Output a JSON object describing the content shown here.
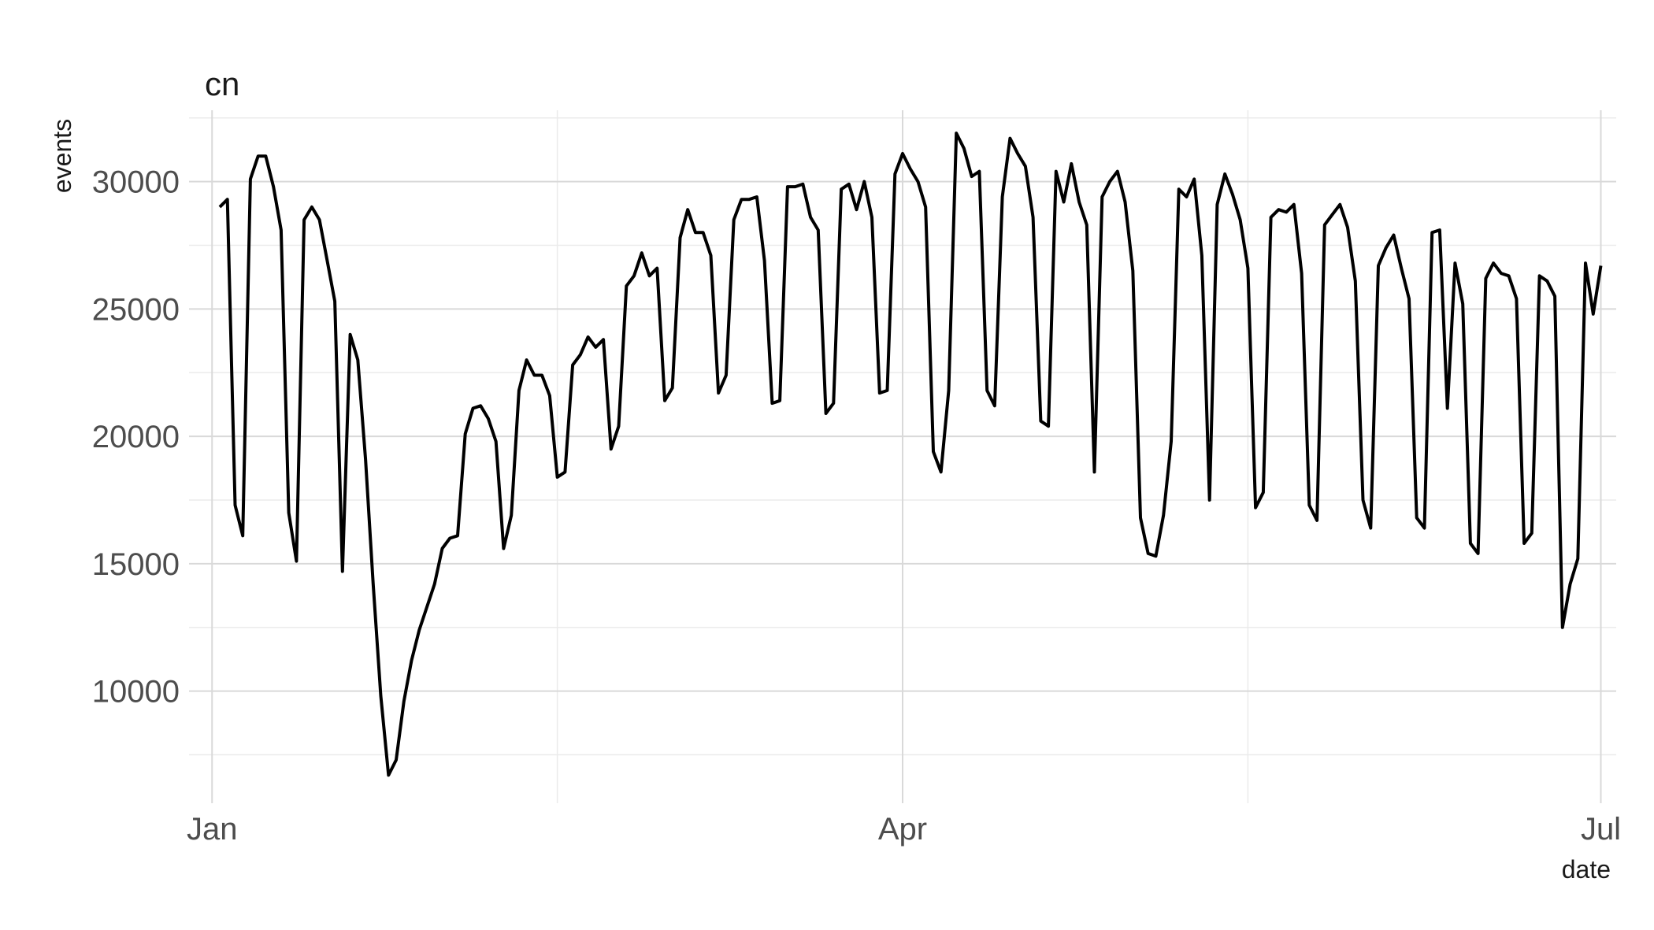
{
  "chart_data": {
    "type": "line",
    "title": "cn",
    "xlabel": "date",
    "ylabel": "events",
    "x_axis": {
      "scale": "date",
      "range": [
        "2021-12-29",
        "2022-07-03"
      ],
      "ticks": [
        {
          "date": "2022-01-01",
          "label": "Jan"
        },
        {
          "date": "2022-04-01",
          "label": "Apr"
        },
        {
          "date": "2022-07-01",
          "label": "Jul"
        }
      ],
      "minor_ticks": [
        "2022-02-15",
        "2022-05-16"
      ]
    },
    "y_axis": {
      "range": [
        5600,
        32800
      ],
      "ticks": [
        10000,
        15000,
        20000,
        25000,
        30000
      ],
      "minor_ticks": [
        7500,
        12500,
        17500,
        22500,
        27500,
        32500
      ]
    },
    "grid": true,
    "legend": "none",
    "colors": {
      "line": "#000000",
      "grid_major": "#d9d9d9",
      "grid_minor": "#ebebeb"
    },
    "series": [
      {
        "x_start": "2022-01-02",
        "x_step_days": 1,
        "values": [
          29000,
          29300,
          17300,
          16100,
          30100,
          31000,
          31000,
          29800,
          28100,
          17000,
          15100,
          28500,
          29000,
          28500,
          26900,
          25300,
          14700,
          24000,
          23000,
          19100,
          14200,
          9800,
          6700,
          7300,
          9600,
          11200,
          12400,
          13300,
          14200,
          15600,
          16000,
          16100,
          20100,
          21100,
          21200,
          20700,
          19800,
          15600,
          16900,
          21800,
          23000,
          22400,
          22400,
          21600,
          18400,
          18600,
          22800,
          23200,
          23900,
          23500,
          23800,
          19500,
          20400,
          25900,
          26300,
          27200,
          26300,
          26600,
          21400,
          21900,
          27800,
          28900,
          28000,
          28000,
          27100,
          21700,
          22400,
          28500,
          29300,
          29300,
          29400,
          26900,
          21300,
          21400,
          29800,
          29800,
          29900,
          28600,
          28100,
          20900,
          21300,
          29700,
          29900,
          28900,
          30000,
          28600,
          21700,
          21800,
          30300,
          31100,
          30500,
          30000,
          29000,
          19400,
          18600,
          21800,
          31900,
          31300,
          30200,
          30400,
          21800,
          21200,
          29400,
          31700,
          31100,
          30600,
          28600,
          20600,
          20400,
          30400,
          29200,
          30700,
          29200,
          28300,
          18600,
          29400,
          30000,
          30400,
          29200,
          26500,
          16800,
          15400,
          15300,
          16900,
          19800,
          29700,
          29400,
          30100,
          27100,
          17500,
          29100,
          30300,
          29500,
          28500,
          26600,
          17200,
          17800,
          28600,
          28900,
          28800,
          29100,
          26400,
          17300,
          16700,
          28300,
          28700,
          29100,
          28200,
          26100,
          17500,
          16400,
          26700,
          27400,
          27900,
          26600,
          25400,
          16800,
          16400,
          28000,
          28100,
          21100,
          26800,
          25200,
          15800,
          15400,
          26200,
          26800,
          26400,
          26300,
          25400,
          15800,
          16200,
          26300,
          26100,
          25500,
          12500,
          14200,
          15200,
          26800,
          24800,
          26700
        ]
      }
    ]
  }
}
